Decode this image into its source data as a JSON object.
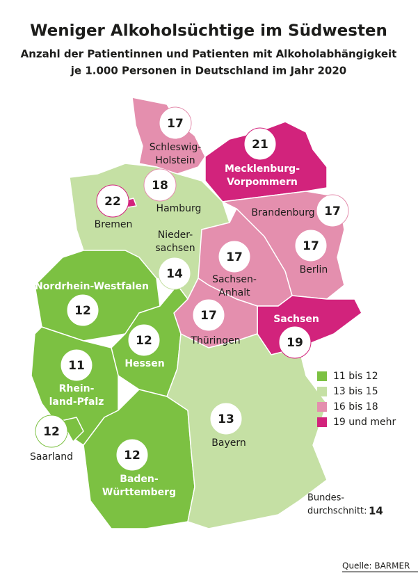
{
  "title": "Weniger Alkoholsüchtige im Südwesten",
  "subtitle": [
    "Anzahl der Patientinnen und Patienten mit Alkoholabhängigkeit",
    "je 1.000 Personen in Deutschland im Jahr 2020"
  ],
  "states": [
    {
      "label": [
        "Schleswig-",
        "Holstein"
      ],
      "value": 17,
      "color": "#e48fae"
    },
    {
      "label": [
        "Mecklenburg-",
        "Vorpommern"
      ],
      "value": 21,
      "color": "#d2237c"
    },
    {
      "label": [
        "Hamburg"
      ],
      "value": 18,
      "color": "#e48fae"
    },
    {
      "label": [
        "Bremen"
      ],
      "value": 22,
      "color": "#d2237c"
    },
    {
      "label": [
        "Nieder-",
        "sachsen"
      ],
      "value": 14,
      "color": "#c5e0a4"
    },
    {
      "label": [
        "Brandenburg"
      ],
      "value": 17,
      "color": "#e48fae"
    },
    {
      "label": [
        "Berlin"
      ],
      "value": 17,
      "color": "#e48fae"
    },
    {
      "label": [
        "Sachsen-",
        "Anhalt"
      ],
      "value": 17,
      "color": "#e48fae"
    },
    {
      "label": [
        "Sachsen"
      ],
      "value": 19,
      "color": "#d2237c"
    },
    {
      "label": [
        "Thüringen"
      ],
      "value": 17,
      "color": "#e48fae"
    },
    {
      "label": [
        "Nordrhein-Westfalen"
      ],
      "value": 12,
      "color": "#7cc142"
    },
    {
      "label": [
        "Hessen"
      ],
      "value": 12,
      "color": "#7cc142"
    },
    {
      "label": [
        "Rhein-",
        "land-Pfalz"
      ],
      "value": 11,
      "color": "#7cc142"
    },
    {
      "label": [
        "Saarland"
      ],
      "value": 12,
      "color": "#7cc142"
    },
    {
      "label": [
        "Baden-",
        "Württemberg"
      ],
      "value": 12,
      "color": "#7cc142"
    },
    {
      "label": [
        "Bayern"
      ],
      "value": 13,
      "color": "#c5e0a4"
    }
  ],
  "legend": [
    {
      "label": "11 bis 12",
      "color": "#7cc142"
    },
    {
      "label": "13 bis 15",
      "color": "#c5e0a4"
    },
    {
      "label": "16 bis 18",
      "color": "#e48fae"
    },
    {
      "label": "19 und mehr",
      "color": "#d2237c"
    }
  ],
  "average": {
    "label": [
      "Bundes-",
      "durchschnitt:"
    ],
    "value": 14
  },
  "source": "Quelle: BARMER"
}
